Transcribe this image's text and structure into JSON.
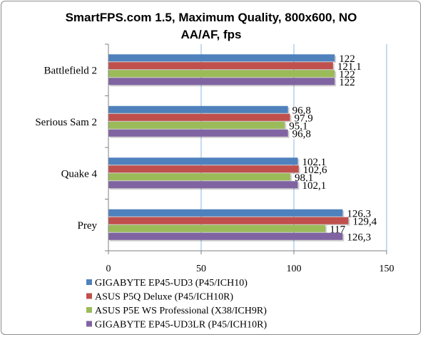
{
  "chart_data": {
    "type": "bar",
    "orientation": "horizontal",
    "title_lines": [
      "SmartFPS.com 1.5, Maximum Quality, 800x600, NO",
      "AA/AF, fps"
    ],
    "categories": [
      "Battlefield 2",
      "Serious Sam 2",
      "Quake 4",
      "Prey"
    ],
    "series": [
      {
        "name": "GIGABYTE EP45-UD3 (P45/ICH10)",
        "color": "#4f81bd",
        "values": [
          122,
          96.8,
          102.1,
          126.3
        ],
        "labels": [
          "122",
          "96,8",
          "102,1",
          "126,3"
        ]
      },
      {
        "name": "ASUS P5Q Deluxe (P45/ICH10R)",
        "color": "#c0504d",
        "values": [
          121.1,
          97.9,
          102.6,
          129.4
        ],
        "labels": [
          "121,1",
          "97,9",
          "102,6",
          "129,4"
        ]
      },
      {
        "name": "ASUS P5E WS Professional (X38/ICH9R)",
        "color": "#9bbb59",
        "values": [
          122,
          95.1,
          98.1,
          117
        ],
        "labels": [
          "122",
          "95,1",
          "98,1",
          "117"
        ]
      },
      {
        "name": "GIGABYTE EP45-UD3LR (P45/ICH10R)",
        "color": "#8064a2",
        "values": [
          122,
          96.8,
          102.1,
          126.3
        ],
        "labels": [
          "122",
          "96,8",
          "102,1",
          "126,3"
        ]
      }
    ],
    "xlim": [
      0,
      150
    ],
    "xticks": [
      0,
      50,
      100,
      150
    ],
    "xtick_labels": [
      "0",
      "50",
      "100",
      "150"
    ],
    "grid": true,
    "legend_position": "bottom"
  }
}
